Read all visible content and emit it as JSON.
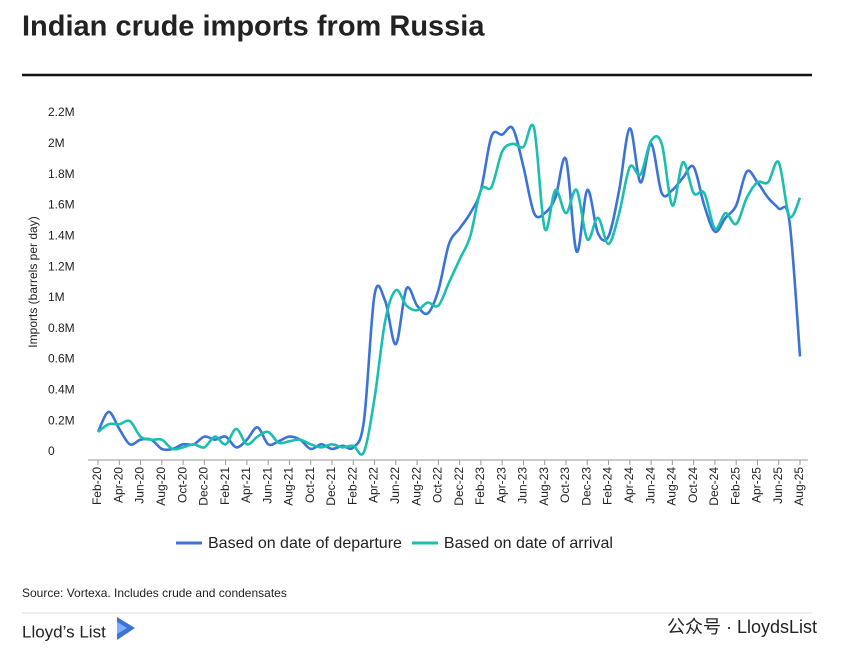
{
  "chart_data": {
    "type": "line",
    "title": "Indian crude imports from Russia",
    "y_label": "Imports (barrels per day)",
    "categories": [
      "Feb-20",
      null,
      "Apr-20",
      null,
      "Jun-20",
      null,
      "Aug-20",
      null,
      "Oct-20",
      null,
      "Dec-20",
      null,
      "Feb-21",
      null,
      "Apr-21",
      null,
      "Jun-21",
      null,
      "Aug-21",
      null,
      "Oct-21",
      null,
      "Dec-21",
      null,
      "Feb-22",
      null,
      "Apr-22",
      null,
      "Jun-22",
      null,
      "Aug-22",
      null,
      "Oct-22",
      null,
      "Dec-22",
      null,
      "Feb-23",
      null,
      "Apr-23",
      null,
      "Jun-23",
      null,
      "Aug-23",
      null,
      "Oct-23",
      null,
      "Dec-23",
      null,
      "Feb-24",
      null,
      "Apr-24",
      null,
      "Jun-24",
      null,
      "Aug-24",
      null,
      "Oct-24",
      null,
      "Dec-24",
      null,
      "Feb-25",
      null,
      "Apr-25",
      null,
      "Jun-25",
      null,
      "Aug-25"
    ],
    "series": [
      {
        "name": "Based on date of departure",
        "color": "#3b73d9",
        "values": [
          130000,
          260000,
          150000,
          50000,
          80000,
          80000,
          20000,
          20000,
          50000,
          50000,
          100000,
          80000,
          100000,
          30000,
          80000,
          160000,
          50000,
          70000,
          100000,
          80000,
          20000,
          50000,
          20000,
          40000,
          30000,
          200000,
          1020000,
          980000,
          700000,
          1060000,
          950000,
          900000,
          1050000,
          1350000,
          1450000,
          1550000,
          1700000,
          2050000,
          2060000,
          2100000,
          1850000,
          1550000,
          1550000,
          1650000,
          1900000,
          1300000,
          1700000,
          1420000,
          1400000,
          1700000,
          2100000,
          1750000,
          2000000,
          1680000,
          1700000,
          1780000,
          1850000,
          1600000,
          1430000,
          1520000,
          1600000,
          1820000,
          1750000,
          1650000,
          1580000,
          1500000,
          620000
        ]
      },
      {
        "name": "Based on date of arrival",
        "color": "#1bbfae",
        "values": [
          130000,
          180000,
          180000,
          200000,
          100000,
          80000,
          80000,
          20000,
          30000,
          50000,
          30000,
          100000,
          50000,
          150000,
          50000,
          100000,
          130000,
          60000,
          70000,
          80000,
          50000,
          30000,
          50000,
          30000,
          40000,
          0,
          350000,
          850000,
          1050000,
          950000,
          920000,
          970000,
          950000,
          1100000,
          1250000,
          1400000,
          1700000,
          1720000,
          1950000,
          2000000,
          1980000,
          2100000,
          1450000,
          1700000,
          1550000,
          1700000,
          1380000,
          1520000,
          1350000,
          1550000,
          1850000,
          1800000,
          2020000,
          2000000,
          1600000,
          1880000,
          1680000,
          1680000,
          1450000,
          1550000,
          1480000,
          1650000,
          1750000,
          1750000,
          1880000,
          1530000,
          1650000
        ]
      }
    ],
    "ylim": [
      0,
      2200000
    ],
    "yticks": [
      0,
      {
        "value": 200000,
        "label": "0.2M"
      },
      {
        "value": 400000,
        "label": "0.4M"
      },
      {
        "value": 600000,
        "label": "0.6M"
      },
      {
        "value": 800000,
        "label": "0.8M"
      },
      {
        "value": 1000000,
        "label": "1M"
      },
      {
        "value": 1200000,
        "label": "1.2M"
      },
      {
        "value": 1400000,
        "label": "1.4M"
      },
      {
        "value": 1600000,
        "label": "1.6M"
      },
      {
        "value": 1800000,
        "label": "1.8M"
      },
      {
        "value": 2000000,
        "label": "2M"
      },
      {
        "value": 2200000,
        "label": "2.2M"
      }
    ],
    "grid": false,
    "legend": "bottom"
  },
  "source": "Source: Vortexa. Includes crude and condensates",
  "brand": "Lloyd’s List",
  "watermark": "公众号 · LloydsList"
}
